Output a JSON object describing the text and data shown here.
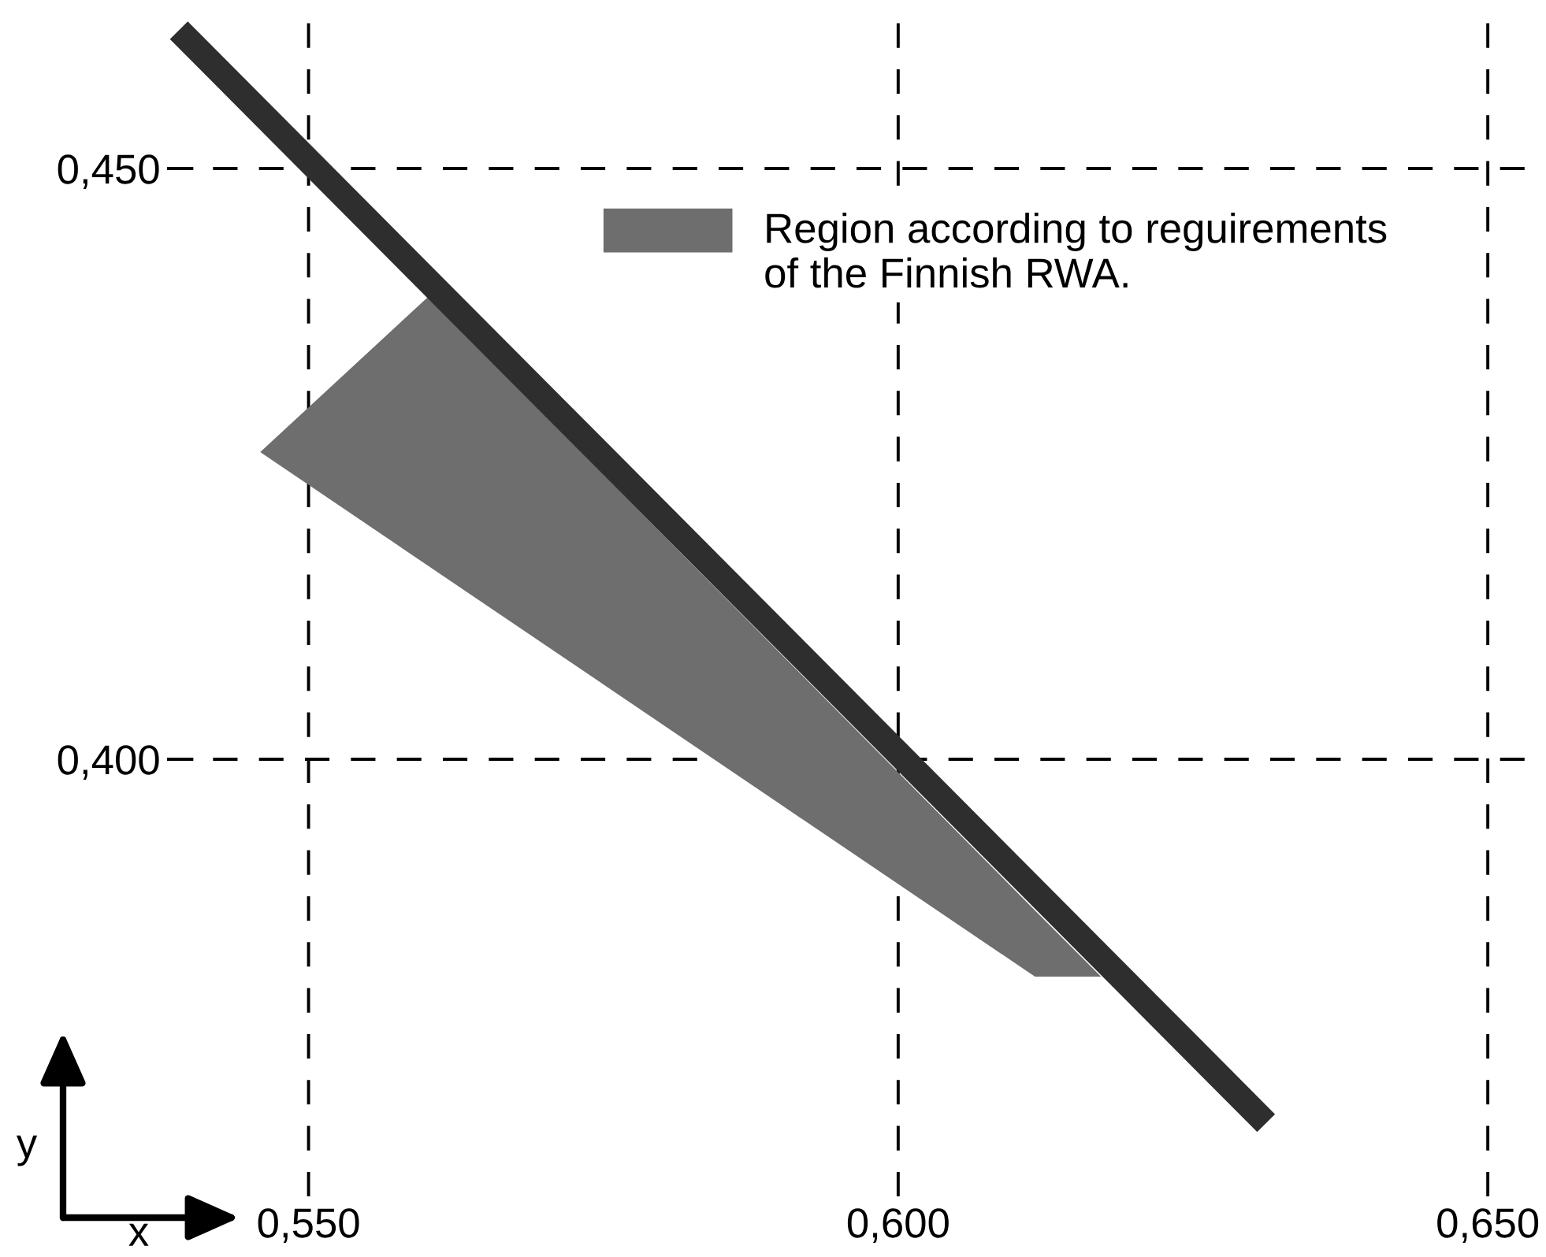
{
  "chart_data": {
    "type": "line",
    "xlabel": "x",
    "ylabel": "y",
    "xlim": [
      0.538,
      0.654
    ],
    "ylim": [
      0.363,
      0.463
    ],
    "xticks": [
      {
        "value": 0.55,
        "label": "0,550"
      },
      {
        "value": 0.6,
        "label": "0,600"
      },
      {
        "value": 0.65,
        "label": "0,650"
      }
    ],
    "yticks": [
      {
        "value": 0.4,
        "label": "0,400"
      },
      {
        "value": 0.45,
        "label": "0,450"
      }
    ],
    "grid": true,
    "legend": "top",
    "series": [
      {
        "type": "area",
        "name": "Region according to reguirements\nof the Finnish RWA.",
        "color": "#6e6e6e",
        "x": [
          0.5459,
          0.5601,
          0.6116,
          0.6172
        ],
        "values": [
          null,
          null,
          null,
          null
        ],
        "lower": [
          0.426,
          0.4164,
          0.3816,
          0.3816
        ],
        "upper": [
          0.426,
          0.4391,
          0.3872,
          0.3816
        ]
      },
      {
        "color": "#2e2e2e",
        "x": [
          0.539,
          0.6312
        ],
        "values": [
          0.4617,
          0.3692
        ]
      }
    ]
  }
}
